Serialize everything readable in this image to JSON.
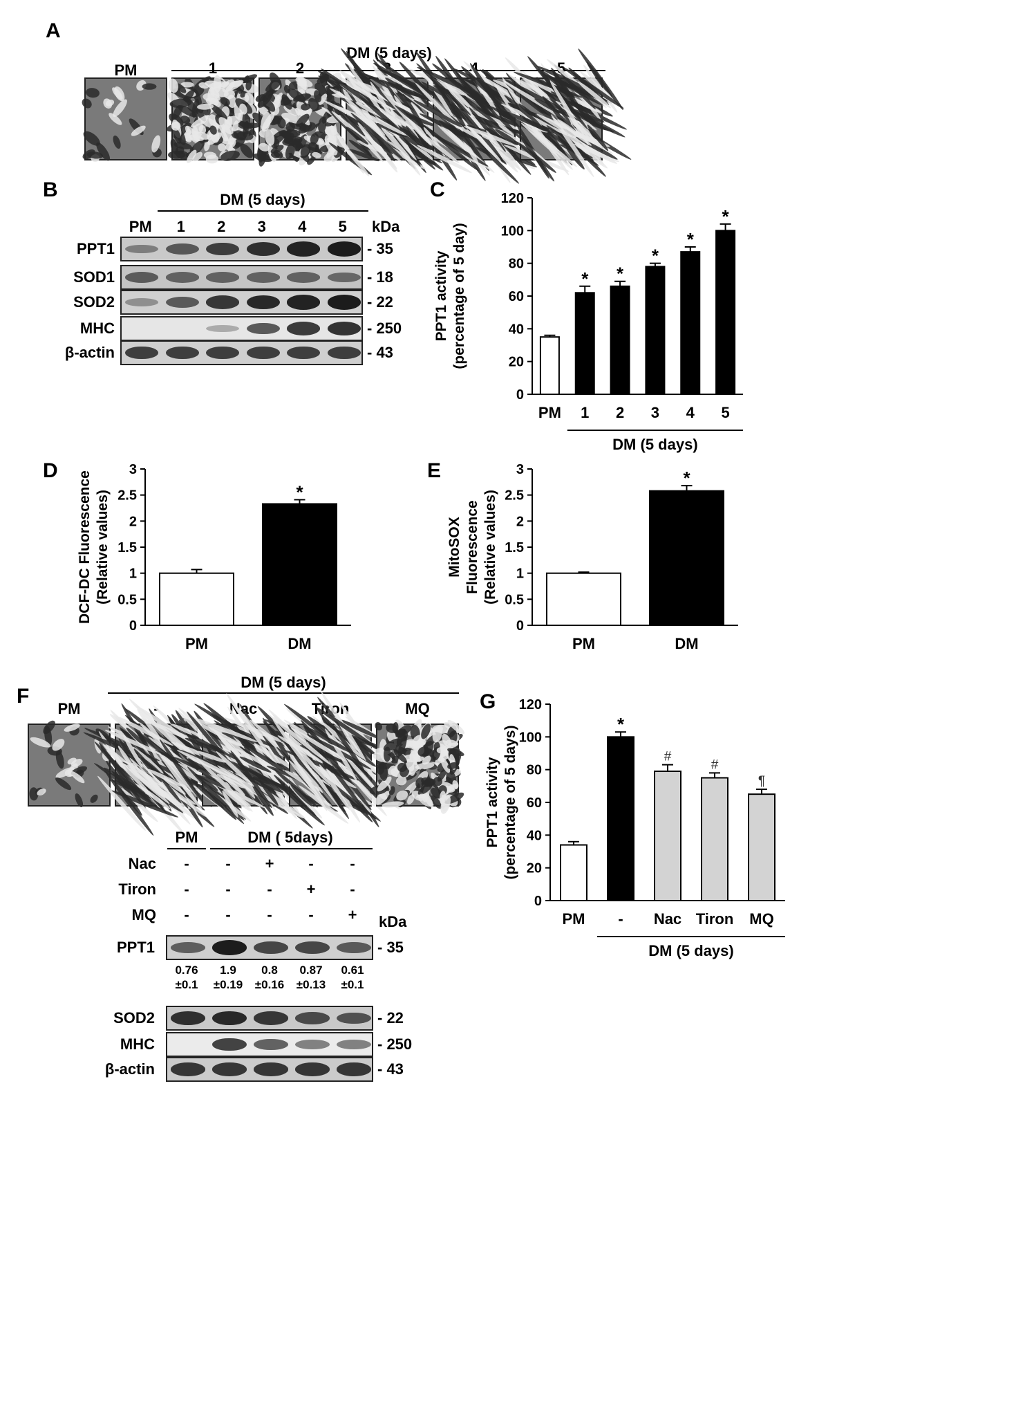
{
  "panels": {
    "A": {
      "letter": "A",
      "header": "DM (5 days)",
      "images": [
        "PM",
        "1",
        "2",
        "3",
        "4",
        "5"
      ]
    },
    "B": {
      "letter": "B",
      "header": "DM (5 days)",
      "lanes": [
        "PM",
        "1",
        "2",
        "3",
        "4",
        "5"
      ],
      "kda_label": "kDa",
      "rows": [
        {
          "protein": "PPT1",
          "kda": "- 35"
        },
        {
          "protein": "SOD1",
          "kda": "- 18"
        },
        {
          "protein": "SOD2",
          "kda": "- 22"
        },
        {
          "protein": "MHC",
          "kda": "- 250"
        },
        {
          "protein": "β-actin",
          "kda": "- 43"
        }
      ]
    },
    "C": {
      "letter": "C"
    },
    "D": {
      "letter": "D"
    },
    "E": {
      "letter": "E"
    },
    "F": {
      "letter": "F",
      "header": "DM (5 days)",
      "images": [
        "PM",
        "-",
        "Nac",
        "Tiron",
        "MQ"
      ],
      "blot_header_pm": "PM",
      "blot_header_dm": "DM ( 5days)",
      "kda_label": "kDa",
      "treatments": [
        {
          "name": "Nac",
          "signs": [
            "-",
            "-",
            "+",
            "-",
            "-"
          ]
        },
        {
          "name": "Tiron",
          "signs": [
            "-",
            "-",
            "-",
            "+",
            "-"
          ]
        },
        {
          "name": "MQ",
          "signs": [
            "-",
            "-",
            "-",
            "-",
            "+"
          ]
        }
      ],
      "rows": [
        {
          "protein": "PPT1",
          "kda": "- 35"
        },
        {
          "protein": "SOD2",
          "kda": "- 22"
        },
        {
          "protein": "MHC",
          "kda": "- 250"
        },
        {
          "protein": "β-actin",
          "kda": "- 43"
        }
      ],
      "quant": [
        {
          "mean": "0.76",
          "sd": "±0.1"
        },
        {
          "mean": "1.9",
          "sd": "±0.19"
        },
        {
          "mean": "0.8",
          "sd": "±0.16"
        },
        {
          "mean": "0.87",
          "sd": "±0.13"
        },
        {
          "mean": "0.61",
          "sd": "±0.1"
        }
      ]
    },
    "G": {
      "letter": "G"
    }
  },
  "chart_data": [
    {
      "id": "C",
      "type": "bar",
      "categories": [
        "PM",
        "1",
        "2",
        "3",
        "4",
        "5"
      ],
      "values": [
        35,
        62,
        66,
        78,
        87,
        100
      ],
      "errors": [
        1,
        4,
        3,
        2,
        3,
        4
      ],
      "fills": [
        "#ffffff",
        "#000000",
        "#000000",
        "#000000",
        "#000000",
        "#000000"
      ],
      "markers": [
        "",
        "*",
        "*",
        "*",
        "*",
        "*"
      ],
      "ylabel_lines": [
        "PPT1 activity",
        "(percentage of 5 day)"
      ],
      "ylim": [
        0,
        120
      ],
      "yticks": [
        "0",
        "20",
        "40",
        "60",
        "80",
        "100",
        "120"
      ],
      "group_label": "DM (5 days)"
    },
    {
      "id": "D",
      "type": "bar",
      "categories": [
        "PM",
        "DM"
      ],
      "values": [
        1.0,
        2.33
      ],
      "errors": [
        0.07,
        0.08
      ],
      "fills": [
        "#ffffff",
        "#000000"
      ],
      "markers": [
        "",
        "*"
      ],
      "ylabel_lines": [
        "DCF-DC Fluorescence",
        "(Relative values)"
      ],
      "ylim": [
        0,
        3
      ],
      "yticks": [
        "0",
        "0.5",
        "1",
        "1.5",
        "2",
        "2.5",
        "3"
      ]
    },
    {
      "id": "E",
      "type": "bar",
      "categories": [
        "PM",
        "DM"
      ],
      "values": [
        1.0,
        2.58
      ],
      "errors": [
        0.02,
        0.1
      ],
      "fills": [
        "#ffffff",
        "#000000"
      ],
      "markers": [
        "",
        "*"
      ],
      "ylabel_lines": [
        "MitoSOX",
        "Fluorescence",
        "(Relative values)"
      ],
      "ylim": [
        0,
        3
      ],
      "yticks": [
        "0",
        "0.5",
        "1",
        "1.5",
        "2",
        "2.5",
        "3"
      ]
    },
    {
      "id": "G",
      "type": "bar",
      "categories": [
        "PM",
        "-",
        "Nac",
        "Tiron",
        "MQ"
      ],
      "values": [
        34,
        100,
        79,
        75,
        65
      ],
      "errors": [
        2,
        3,
        4,
        3,
        3
      ],
      "fills": [
        "#ffffff",
        "#000000",
        "#d3d3d3",
        "#d3d3d3",
        "#d3d3d3"
      ],
      "markers": [
        "",
        "*",
        "#",
        "#",
        "¶"
      ],
      "ylabel_lines": [
        "PPT1 activity",
        "(percentage of 5 days)"
      ],
      "ylim": [
        0,
        120
      ],
      "yticks": [
        "0",
        "20",
        "40",
        "60",
        "80",
        "100",
        "120"
      ],
      "group_label": "DM (5 days)"
    }
  ]
}
